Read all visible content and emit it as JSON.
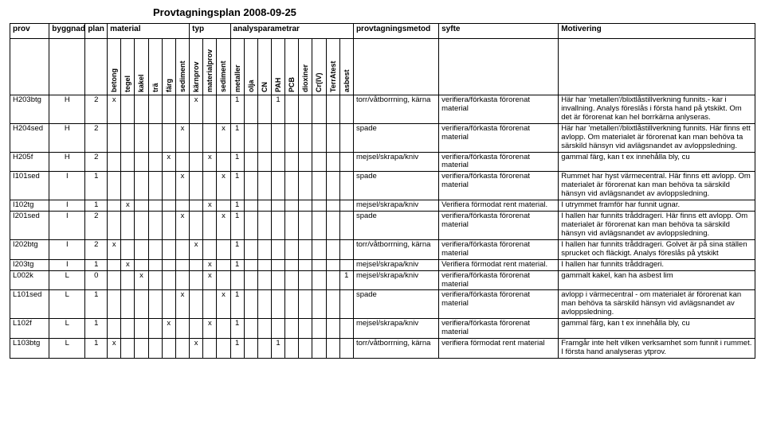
{
  "title": "Provtagningsplan 2008-09-25",
  "columns": {
    "main": [
      "prov",
      "byggnad",
      "plan",
      "material",
      "typ",
      "analysparametrar",
      "provtagningsmetod",
      "syfte",
      "Motivering"
    ],
    "material": [
      "betong",
      "tegel",
      "kakel",
      "trä",
      "färg",
      "sediment"
    ],
    "typ": [
      "kärnprov",
      "materialprov",
      "sediment"
    ],
    "analys": [
      "metaller",
      "olja",
      "CN",
      "PAH",
      "PCB",
      "dioxiner",
      "Cr(IV)",
      "TerrAtest",
      "asbest"
    ]
  },
  "rows": [
    {
      "prov": "H203btg",
      "byggnad": "H",
      "plan": "2",
      "mat": [
        "x",
        "",
        "",
        "",
        "",
        ""
      ],
      "typ": [
        "x",
        "",
        ""
      ],
      "an": [
        "1",
        "",
        "",
        "1",
        "",
        "",
        "",
        "",
        ""
      ],
      "metod": "torr/våtborrning, kärna",
      "syfte": "verifiera/förkasta förorenat material",
      "mot": "Här har 'metallen'/blixtlåstillverkning funnits.- kar i invallning. Analys föreslås i första hand på ytskikt. Om det är förorenat kan hel borrkärna anlyseras."
    },
    {
      "prov": "H204sed",
      "byggnad": "H",
      "plan": "2",
      "mat": [
        "",
        "",
        "",
        "",
        "",
        "x"
      ],
      "typ": [
        "",
        "",
        "x"
      ],
      "an": [
        "1",
        "",
        "",
        "",
        "",
        "",
        "",
        "",
        ""
      ],
      "metod": "spade",
      "syfte": "verifiera/förkasta förorenat material",
      "mot": "Här har 'metallen'/blixtlåstillverkning funnits. Här finns ett avlopp. Om materialet är förorenat kan man behöva ta särskild hänsyn vid avlägsnandet av avloppsledning."
    },
    {
      "prov": "H205f",
      "byggnad": "H",
      "plan": "2",
      "mat": [
        "",
        "",
        "",
        "",
        "x",
        ""
      ],
      "typ": [
        "",
        "x",
        ""
      ],
      "an": [
        "1",
        "",
        "",
        "",
        "",
        "",
        "",
        "",
        ""
      ],
      "metod": "mejsel/skrapa/kniv",
      "syfte": "verifiera/förkasta förorenat material",
      "mot": "gammal färg, kan t ex innehålla bly, cu"
    },
    {
      "prov": "I101sed",
      "byggnad": "I",
      "plan": "1",
      "mat": [
        "",
        "",
        "",
        "",
        "",
        "x"
      ],
      "typ": [
        "",
        "",
        "x"
      ],
      "an": [
        "1",
        "",
        "",
        "",
        "",
        "",
        "",
        "",
        ""
      ],
      "metod": "spade",
      "syfte": "verifiera/förkasta förorenat material",
      "mot": "Rummet har hyst värmecentral. Här finns ett avlopp. Om materialet är förorenat kan man behöva ta särskild hänsyn vid avlägsnandet av avloppsledning."
    },
    {
      "prov": "I102tg",
      "byggnad": "I",
      "plan": "1",
      "mat": [
        "",
        "x",
        "",
        "",
        "",
        ""
      ],
      "typ": [
        "",
        "x",
        ""
      ],
      "an": [
        "1",
        "",
        "",
        "",
        "",
        "",
        "",
        "",
        ""
      ],
      "metod": "mejsel/skrapa/kniv",
      "syfte": "Verifiera förmodat rent material.",
      "mot": "I utrymmet framför har funnit ugnar."
    },
    {
      "prov": "I201sed",
      "byggnad": "I",
      "plan": "2",
      "mat": [
        "",
        "",
        "",
        "",
        "",
        "x"
      ],
      "typ": [
        "",
        "",
        "x"
      ],
      "an": [
        "1",
        "",
        "",
        "",
        "",
        "",
        "",
        "",
        ""
      ],
      "metod": "spade",
      "syfte": "verifiera/förkasta förorenat material",
      "mot": "I hallen har funnits tråddrageri. Här finns ett avlopp. Om materialet är förorenat kan man behöva ta särskild hänsyn vid avlägsnandet av avloppsledning."
    },
    {
      "prov": "I202btg",
      "byggnad": "I",
      "plan": "2",
      "mat": [
        "x",
        "",
        "",
        "",
        "",
        ""
      ],
      "typ": [
        "x",
        "",
        ""
      ],
      "an": [
        "1",
        "",
        "",
        "",
        "",
        "",
        "",
        "",
        ""
      ],
      "metod": "torr/våtborrning, kärna",
      "syfte": "verifiera/förkasta förorenat material",
      "mot": "I hallen har funnits tråddrageri. Golvet är på sina ställen sprucket och fläckigt. Analys föreslås på ytskikt"
    },
    {
      "prov": "I203tg",
      "byggnad": "I",
      "plan": "1",
      "mat": [
        "",
        "x",
        "",
        "",
        "",
        ""
      ],
      "typ": [
        "",
        "x",
        ""
      ],
      "an": [
        "1",
        "",
        "",
        "",
        "",
        "",
        "",
        "",
        ""
      ],
      "metod": "mejsel/skrapa/kniv",
      "syfte": "Verifiera förmodat rent material.",
      "mot": "I hallen har funnits tråddrageri."
    },
    {
      "prov": "L002k",
      "byggnad": "L",
      "plan": "0",
      "mat": [
        "",
        "",
        "x",
        "",
        "",
        ""
      ],
      "typ": [
        "",
        "x",
        ""
      ],
      "an": [
        "",
        "",
        "",
        "",
        "",
        "",
        "",
        "",
        "1"
      ],
      "metod": "mejsel/skrapa/kniv",
      "syfte": "verifiera/förkasta förorenat material",
      "mot": "gammalt kakel, kan ha asbest lim"
    },
    {
      "prov": "L101sed",
      "byggnad": "L",
      "plan": "1",
      "mat": [
        "",
        "",
        "",
        "",
        "",
        "x"
      ],
      "typ": [
        "",
        "",
        "x"
      ],
      "an": [
        "1",
        "",
        "",
        "",
        "",
        "",
        "",
        "",
        ""
      ],
      "metod": "spade",
      "syfte": "verifiera/förkasta förorenat material",
      "mot": "avlopp i värmecentral - om materialet är förorenat kan man behöva ta särskild hänsyn vid avlägsnandet av avloppsledning."
    },
    {
      "prov": "L102f",
      "byggnad": "L",
      "plan": "1",
      "mat": [
        "",
        "",
        "",
        "",
        "x",
        ""
      ],
      "typ": [
        "",
        "x",
        ""
      ],
      "an": [
        "1",
        "",
        "",
        "",
        "",
        "",
        "",
        "",
        ""
      ],
      "metod": "mejsel/skrapa/kniv",
      "syfte": "verifiera/förkasta förorenat material",
      "mot": "gammal färg, kan t ex innehålla bly, cu"
    },
    {
      "prov": "L103btg",
      "byggnad": "L",
      "plan": "1",
      "mat": [
        "x",
        "",
        "",
        "",
        "",
        ""
      ],
      "typ": [
        "x",
        "",
        ""
      ],
      "an": [
        "1",
        "",
        "",
        "1",
        "",
        "",
        "",
        "",
        ""
      ],
      "metod": "torr/våtborrning, kärna",
      "syfte": "verifiera förmodat rent material",
      "mot": "Framgår inte helt vilken verksamhet som funnit i rummet. I första hand analyseras ytprov."
    }
  ]
}
